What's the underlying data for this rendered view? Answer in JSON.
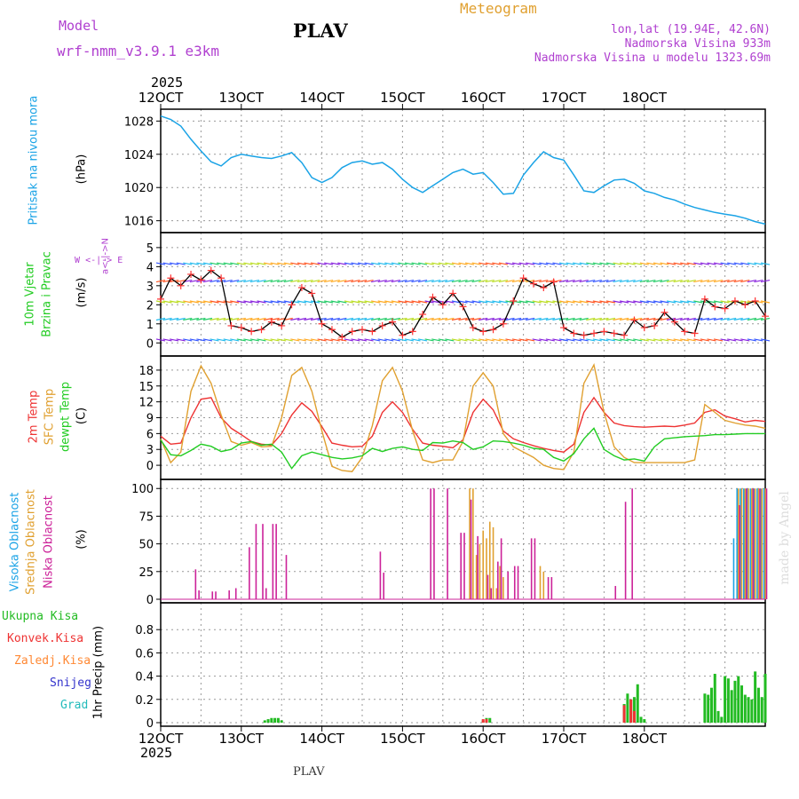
{
  "header": {
    "model_label": "Model",
    "model_name": "wrf-nmm_v3.9.1 e3km",
    "station": "PLAV",
    "product": "Meteogram",
    "coords": "lon,lat (19.94E, 42.6N)",
    "elevation": "Nadmorska Visina 933m",
    "model_elevation": "Nadmorska Visina u modelu 1323.69m",
    "year_top": "2025",
    "year_bottom": "2025",
    "footer_station": "PLAV",
    "watermark": "made by Angel"
  },
  "colors": {
    "pressure": "#1aa3e6",
    "wind_speed": "#000000",
    "wind_plus": "#ff3333",
    "t2m": "#ee3333",
    "tsfc": "#e0a030",
    "tdew": "#22cc22",
    "cloud_high": "#1aa3e6",
    "cloud_mid": "#e0a030",
    "cloud_low": "#cc2299",
    "precip_total": "#22bb22",
    "precip_conv": "#ee3333",
    "precip_frz": "#ff8833",
    "precip_snow": "#3333cc",
    "precip_grad": "#22bbbb",
    "purple": "#b040d0",
    "gold": "#e0a030"
  },
  "chart_data": [
    {
      "type": "line",
      "panel": "pressure",
      "title": "Pritisak na nivou mora",
      "ylabel": "(hPa)",
      "ylim": [
        1015,
        1029
      ],
      "yticks": [
        1016,
        1020,
        1024,
        1028
      ],
      "x_hours": [
        0,
        3,
        6,
        9,
        12,
        15,
        18,
        21,
        24,
        27,
        30,
        33,
        36,
        39,
        42,
        45,
        48,
        51,
        54,
        57,
        60,
        63,
        66,
        69,
        72,
        75,
        78,
        81,
        84,
        87,
        90,
        93,
        96,
        99,
        102,
        105,
        108,
        111,
        114,
        117,
        120,
        123,
        126,
        129,
        132,
        135,
        138,
        141,
        144,
        147,
        150,
        153,
        156,
        159,
        162,
        165,
        168,
        171,
        174,
        177,
        180
      ],
      "values": [
        1028.6,
        1028.2,
        1027.4,
        1025.8,
        1024.4,
        1023.1,
        1022.6,
        1023.6,
        1024.0,
        1023.8,
        1023.6,
        1023.5,
        1023.8,
        1024.2,
        1023.0,
        1021.2,
        1020.6,
        1021.2,
        1022.4,
        1023.0,
        1023.2,
        1022.8,
        1023.0,
        1022.2,
        1021.0,
        1020.0,
        1019.4,
        1020.2,
        1021.0,
        1021.8,
        1022.2,
        1021.6,
        1021.8,
        1020.6,
        1019.2,
        1019.3,
        1021.5,
        1023.0,
        1024.3,
        1023.6,
        1023.3,
        1021.5,
        1019.6,
        1019.4,
        1020.2,
        1020.9,
        1021.0,
        1020.5,
        1019.6,
        1019.3,
        1018.8,
        1018.5,
        1018.0,
        1017.6,
        1017.3,
        1017.0,
        1016.8,
        1016.6,
        1016.3,
        1015.9,
        1015.6
      ]
    },
    {
      "type": "line",
      "panel": "wind",
      "title": "10m Vjetar Brzina i Pravac",
      "ylabel": "(m/s)",
      "direction_legend": "W <-|-> E  a<-|->N",
      "ylim": [
        -0.5,
        5.6
      ],
      "yticks": [
        0,
        1,
        2,
        3,
        4,
        5
      ],
      "x_hours": [
        0,
        3,
        6,
        9,
        12,
        15,
        18,
        21,
        24,
        27,
        30,
        33,
        36,
        39,
        42,
        45,
        48,
        51,
        54,
        57,
        60,
        63,
        66,
        69,
        72,
        75,
        78,
        81,
        84,
        87,
        90,
        93,
        96,
        99,
        102,
        105,
        108,
        111,
        114,
        117,
        120,
        123,
        126,
        129,
        132,
        135,
        138,
        141,
        144,
        147,
        150,
        153,
        156,
        159,
        162,
        165,
        168,
        171,
        174,
        177,
        180
      ],
      "values": [
        2.3,
        3.4,
        3.0,
        3.6,
        3.3,
        3.8,
        3.4,
        0.9,
        0.8,
        0.6,
        0.7,
        1.1,
        0.9,
        2.0,
        2.9,
        2.6,
        1.0,
        0.7,
        0.3,
        0.6,
        0.7,
        0.6,
        0.9,
        1.1,
        0.4,
        0.6,
        1.5,
        2.4,
        2.0,
        2.6,
        1.9,
        0.8,
        0.6,
        0.7,
        1.0,
        2.2,
        3.4,
        3.1,
        2.9,
        3.2,
        0.8,
        0.5,
        0.4,
        0.5,
        0.6,
        0.5,
        0.4,
        1.2,
        0.8,
        0.9,
        1.6,
        1.1,
        0.6,
        0.5,
        2.3,
        1.9,
        1.8,
        2.2,
        2.0,
        2.2,
        1.4
      ],
      "direction_bands": [
        0,
        1,
        2,
        3,
        4
      ]
    },
    {
      "type": "line",
      "panel": "temperature",
      "title": "2m Temp / SFC Temp / dewpt Temp",
      "ylabel": "(C)",
      "ylim": [
        -2,
        20
      ],
      "yticks": [
        0,
        3,
        6,
        9,
        12,
        15,
        18
      ],
      "x_hours": [
        0,
        3,
        6,
        9,
        12,
        15,
        18,
        21,
        24,
        27,
        30,
        33,
        36,
        39,
        42,
        45,
        48,
        51,
        54,
        57,
        60,
        63,
        66,
        69,
        72,
        75,
        78,
        81,
        84,
        87,
        90,
        93,
        96,
        99,
        102,
        105,
        108,
        111,
        114,
        117,
        120,
        123,
        126,
        129,
        132,
        135,
        138,
        141,
        144,
        147,
        150,
        153,
        156,
        159,
        162,
        165,
        168,
        171,
        174,
        177,
        180
      ],
      "series": [
        {
          "name": "2m Temp",
          "values": [
            5.5,
            4.0,
            4.2,
            9.0,
            12.5,
            12.8,
            9.0,
            7.0,
            5.8,
            4.5,
            4.0,
            3.8,
            6.0,
            9.5,
            11.8,
            10.2,
            7.3,
            4.2,
            3.8,
            3.5,
            3.6,
            5.5,
            10.0,
            12.0,
            10.0,
            6.8,
            4.2,
            3.8,
            3.6,
            3.3,
            4.8,
            10.0,
            12.5,
            10.5,
            6.5,
            5.0,
            4.3,
            3.7,
            3.2,
            2.8,
            2.5,
            4.0,
            10.0,
            12.8,
            10.0,
            8.0,
            7.5,
            7.3,
            7.2,
            7.3,
            7.4,
            7.3,
            7.6,
            8.0,
            10.0,
            10.5,
            9.3,
            8.8,
            8.2,
            8.5,
            8.3
          ]
        },
        {
          "name": "SFC Temp",
          "values": [
            5.0,
            0.5,
            2.5,
            14.0,
            18.8,
            15.5,
            9.5,
            4.5,
            3.8,
            4.3,
            3.5,
            3.6,
            9.0,
            17.0,
            18.5,
            14.0,
            6.5,
            -0.2,
            -1.0,
            -1.2,
            1.5,
            7.5,
            16.0,
            18.5,
            14.0,
            6.5,
            1.0,
            0.5,
            1.0,
            1.0,
            4.5,
            15.0,
            17.5,
            15.0,
            6.0,
            3.5,
            2.5,
            1.5,
            0.0,
            -0.6,
            -0.8,
            2.5,
            15.5,
            19.0,
            10.0,
            3.5,
            1.5,
            0.5,
            0.5,
            0.5,
            0.5,
            0.5,
            0.5,
            1.0,
            11.5,
            10.0,
            8.5,
            8.0,
            7.6,
            7.4,
            7.0
          ]
        },
        {
          "name": "dewpt Temp",
          "values": [
            4.8,
            2.0,
            1.8,
            2.8,
            4.0,
            3.6,
            2.6,
            3.0,
            4.2,
            4.5,
            3.8,
            4.0,
            2.5,
            -0.6,
            1.8,
            2.5,
            2.0,
            1.5,
            1.2,
            1.4,
            1.8,
            3.2,
            2.6,
            3.2,
            3.5,
            3.0,
            2.8,
            4.3,
            4.2,
            4.6,
            4.3,
            3.0,
            3.5,
            4.6,
            4.5,
            4.2,
            3.8,
            3.2,
            3.0,
            1.5,
            0.8,
            2.2,
            5.0,
            7.0,
            3.0,
            1.8,
            1.0,
            1.2,
            0.8,
            3.5,
            5.0,
            5.2,
            5.4,
            5.5,
            5.6,
            5.8,
            5.8,
            5.9,
            6.0,
            6.0,
            6.0
          ]
        }
      ]
    },
    {
      "type": "bar",
      "panel": "cloud",
      "title": "Visoka / Srednja / Niska Oblacnost",
      "ylabel": "(%)",
      "ylim": [
        0,
        105
      ],
      "yticks": [
        0,
        25,
        50,
        75,
        100
      ],
      "series": [
        {
          "name": "Visoka Oblacnost",
          "x_hours": [
            171,
            172,
            173,
            174,
            175,
            176,
            177,
            178,
            179,
            180
          ],
          "values": [
            55,
            100,
            100,
            100,
            100,
            100,
            100,
            100,
            100,
            100
          ]
        },
        {
          "name": "Srednja Oblacnost",
          "x_hours": [
            92,
            93,
            94,
            95,
            96,
            97,
            98,
            99,
            100,
            101,
            102,
            113,
            114,
            172,
            173,
            174,
            175,
            176,
            177,
            178,
            179,
            180
          ],
          "values": [
            100,
            100,
            40,
            50,
            62,
            55,
            70,
            65,
            10,
            30,
            20,
            30,
            25,
            100,
            100,
            100,
            100,
            100,
            100,
            100,
            100,
            100
          ]
        },
        {
          "name": "Niska Oblacnost",
          "x_hours": [
            10,
            11,
            15,
            16,
            20,
            22,
            26,
            28,
            30,
            31,
            33,
            34,
            37,
            65,
            66,
            80,
            81,
            85,
            89,
            90,
            92,
            94,
            97,
            98,
            100,
            101,
            103,
            105,
            106,
            110,
            111,
            115,
            116,
            135,
            138,
            140,
            172,
            174,
            176,
            178,
            180
          ],
          "values": [
            27,
            8,
            7,
            7,
            8,
            10,
            47,
            68,
            68,
            10,
            68,
            68,
            40,
            43,
            24,
            100,
            100,
            100,
            60,
            60,
            90,
            57,
            22,
            10,
            34,
            55,
            25,
            30,
            30,
            55,
            55,
            20,
            20,
            12,
            88,
            100,
            85,
            100,
            100,
            100,
            100
          ]
        }
      ]
    },
    {
      "type": "bar",
      "panel": "precip",
      "title": "1hr Precip",
      "ylabel": "(mm)",
      "legend": [
        "Ukupna Kisa",
        "Konvek.Kisa",
        "Zaledj.Kisa",
        "Snijeg",
        "Grad"
      ],
      "ylim": [
        0,
        1.0
      ],
      "yticks": [
        0,
        0.2,
        0.4,
        0.6,
        0.8
      ],
      "series": [
        {
          "name": "Ukupna Kisa",
          "x_hours": [
            31,
            32,
            33,
            34,
            35,
            36,
            96,
            97,
            98,
            138,
            139,
            140,
            141,
            142,
            143,
            144,
            162,
            163,
            164,
            165,
            166,
            167,
            168,
            169,
            170,
            171,
            172,
            173,
            174,
            175,
            176,
            177,
            178,
            179,
            180
          ],
          "values": [
            0.02,
            0.03,
            0.04,
            0.04,
            0.04,
            0.02,
            0.02,
            0.04,
            0.04,
            0.16,
            0.25,
            0.2,
            0.22,
            0.33,
            0.05,
            0.03,
            0.25,
            0.24,
            0.3,
            0.42,
            0.1,
            0.05,
            0.4,
            0.38,
            0.28,
            0.36,
            0.4,
            0.32,
            0.24,
            0.22,
            0.2,
            0.44,
            0.3,
            0.22,
            0.42
          ]
        },
        {
          "name": "Konvek.Kisa",
          "x_hours": [
            96,
            97,
            138,
            140,
            141
          ],
          "values": [
            0.03,
            0.03,
            0.15,
            0.2,
            0.1
          ]
        }
      ]
    }
  ],
  "panels": {
    "pressure": {
      "label": "Pritisak na nivou mora",
      "unit": "(hPa)"
    },
    "wind": {
      "label1": "10m Vjetar",
      "label2": "Brzina i Pravac",
      "unit": "(m/s)",
      "dir_n": "N",
      "dir_w": "W",
      "dir_e": "E",
      "dir_arrows": "<-|->",
      "dir_alpha": "a<-|->"
    },
    "temp": {
      "label1": "2m Temp",
      "label2": "SFC Temp",
      "label3": "dewpt Temp",
      "unit": "(C)"
    },
    "cloud": {
      "label1": "Visoka Oblacnost",
      "label2": "Srednja Oblacnost",
      "label3": "Niska Oblacnost",
      "unit": "(%)"
    },
    "precip": {
      "legend1": "Ukupna Kisa",
      "legend2": "Konvek.Kisa",
      "legend3": "Zaledj.Kisa",
      "legend4": "Snijeg",
      "legend5": "Grad",
      "unit": "1hr Precip (mm)"
    }
  },
  "xaxis": {
    "tick_labels": [
      "12OCT",
      "13OCT",
      "14OCT",
      "15OCT",
      "16OCT",
      "17OCT",
      "18OCT"
    ],
    "tick_hours": [
      0,
      24,
      48,
      72,
      96,
      120,
      144
    ]
  }
}
